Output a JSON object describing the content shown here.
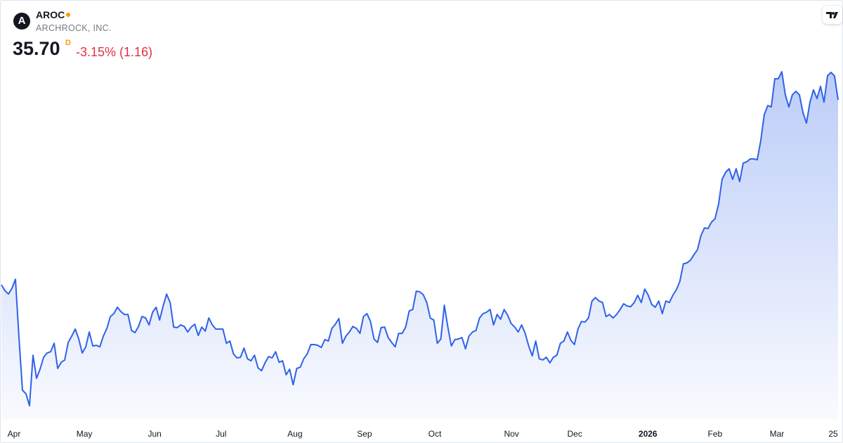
{
  "quote": {
    "logo_letter": "A",
    "symbol": "AROC",
    "name": "ARCHROCK, INC.",
    "price": "35.70",
    "interval": "D",
    "change": "-3.15% (1.16)"
  },
  "chart_data": {
    "type": "area",
    "color": "#2f62e9",
    "values": [
      26.73,
      26.45,
      26.28,
      26.56,
      27.0,
      24.17,
      21.61,
      21.44,
      20.86,
      23.31,
      22.19,
      22.63,
      23.21,
      23.42,
      23.48,
      23.89,
      22.67,
      22.97,
      23.08,
      23.93,
      24.24,
      24.58,
      24.1,
      23.42,
      23.72,
      24.44,
      23.76,
      23.79,
      23.72,
      24.24,
      24.61,
      25.19,
      25.33,
      25.64,
      25.43,
      25.29,
      25.29,
      24.51,
      24.41,
      24.71,
      25.19,
      25.12,
      24.78,
      25.4,
      25.64,
      25.02,
      25.7,
      26.28,
      25.87,
      24.68,
      24.65,
      24.78,
      24.71,
      24.44,
      24.68,
      24.82,
      24.27,
      24.68,
      24.48,
      25.12,
      24.78,
      24.58,
      24.58,
      24.58,
      23.89,
      24.0,
      23.38,
      23.18,
      23.21,
      23.66,
      23.14,
      23.04,
      23.31,
      22.7,
      22.56,
      22.94,
      23.25,
      23.18,
      23.48,
      22.97,
      23.04,
      22.36,
      22.63,
      21.88,
      22.67,
      22.73,
      23.14,
      23.38,
      23.83,
      23.83,
      23.79,
      23.69,
      24.07,
      24.0,
      24.61,
      24.82,
      25.09,
      23.89,
      24.24,
      24.44,
      24.71,
      24.61,
      24.37,
      25.19,
      25.33,
      24.95,
      24.1,
      23.93,
      24.65,
      24.68,
      24.17,
      23.93,
      23.72,
      24.37,
      24.37,
      24.68,
      25.46,
      25.53,
      26.42,
      26.39,
      26.25,
      25.87,
      25.12,
      25.02,
      23.89,
      24.1,
      25.74,
      24.68,
      23.76,
      24.07,
      24.1,
      24.17,
      23.62,
      24.24,
      24.44,
      24.51,
      25.12,
      25.33,
      25.4,
      25.53,
      24.78,
      25.29,
      25.06,
      25.53,
      25.26,
      24.85,
      24.68,
      24.44,
      24.78,
      24.37,
      23.76,
      23.28,
      24.0,
      23.14,
      23.08,
      23.21,
      22.94,
      23.21,
      23.31,
      23.89,
      24.0,
      24.44,
      24.03,
      23.83,
      24.58,
      24.95,
      24.92,
      25.12,
      25.94,
      26.11,
      25.94,
      25.87,
      25.19,
      25.29,
      25.12,
      25.29,
      25.53,
      25.81,
      25.7,
      25.67,
      25.87,
      26.22,
      25.87,
      26.52,
      26.22,
      25.77,
      25.64,
      25.94,
      25.33,
      25.94,
      25.87,
      26.22,
      26.49,
      26.9,
      27.75,
      27.79,
      27.92,
      28.19,
      28.43,
      29.12,
      29.49,
      29.46,
      29.77,
      29.94,
      30.65,
      31.85,
      32.19,
      32.36,
      31.85,
      32.36,
      31.74,
      32.63,
      32.7,
      32.84,
      32.84,
      32.8,
      33.72,
      34.99,
      35.43,
      35.36,
      36.73,
      36.73,
      37.07,
      35.95,
      35.36,
      35.95,
      36.12,
      35.95,
      35.09,
      34.58,
      35.6,
      36.19,
      35.77,
      36.36,
      35.6,
      36.88,
      37.04,
      36.86,
      35.7
    ],
    "xticks": [
      {
        "value": 3.6,
        "label": "Apr"
      },
      {
        "value": 23.6,
        "label": "May"
      },
      {
        "value": 43.6,
        "label": "Jun"
      },
      {
        "value": 62.5,
        "label": "Jul"
      },
      {
        "value": 83.5,
        "label": "Aug"
      },
      {
        "value": 103.3,
        "label": "Sep"
      },
      {
        "value": 123.3,
        "label": "Oct"
      },
      {
        "value": 145.1,
        "label": "Nov"
      },
      {
        "value": 163.1,
        "label": "Dec"
      },
      {
        "value": 183.9,
        "label": "2026"
      },
      {
        "value": 203.0,
        "label": "Feb"
      },
      {
        "value": 220.6,
        "label": "Mar"
      },
      {
        "value": 236.6,
        "label": "25"
      }
    ]
  }
}
